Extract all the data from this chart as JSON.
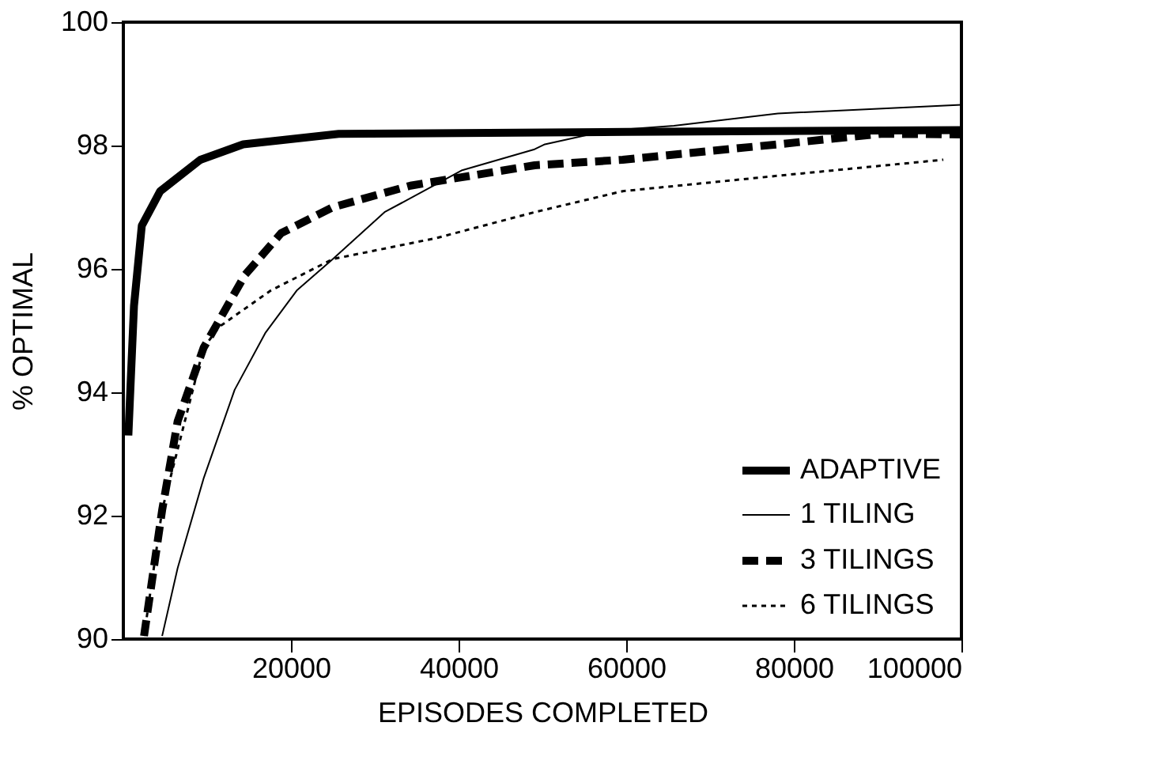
{
  "chart_data": {
    "type": "line",
    "xlabel": "EPISODES COMPLETED",
    "ylabel": "% OPTIMAL",
    "xlim": [
      0,
      100000
    ],
    "ylim": [
      90,
      100
    ],
    "xticks": [
      20000,
      40000,
      60000,
      80000,
      100000
    ],
    "yticks": [
      90,
      92,
      94,
      96,
      98,
      100
    ],
    "grid": false,
    "legend": "bottom right",
    "marker": "none",
    "series": [
      {
        "name": "ADAPTIVE",
        "color": "#000000",
        "line_style": "solid",
        "x": [
          600,
          1270,
          2200,
          4400,
          9200,
          14300,
          25700,
          60000,
          100000
        ],
        "values": [
          93.3,
          95.4,
          96.7,
          97.26,
          97.77,
          98.02,
          98.19,
          98.22,
          98.25
        ]
      },
      {
        "name": "1 TILING",
        "color": "#000000",
        "line_style": "solid",
        "x": [
          4630,
          6480,
          9570,
          13280,
          16980,
          20690,
          25000,
          31170,
          40430,
          49080,
          50300,
          57700,
          65700,
          78100,
          100000
        ],
        "values": [
          90.05,
          91.15,
          92.6,
          94.04,
          94.97,
          95.65,
          96.16,
          96.92,
          97.6,
          97.94,
          98.02,
          98.24,
          98.32,
          98.52,
          98.66
        ]
      },
      {
        "name": "3 TILINGS",
        "color": "#000000",
        "line_style": "dashed",
        "x": [
          2470,
          4630,
          6480,
          9570,
          14500,
          18830,
          25000,
          34260,
          49080,
          59580,
          78100,
          90400,
          100000
        ],
        "values": [
          90.05,
          92.09,
          93.53,
          94.72,
          95.9,
          96.58,
          97.0,
          97.35,
          97.68,
          97.77,
          98.02,
          98.19,
          98.18
        ]
      },
      {
        "name": "6 TILINGS",
        "color": "#000000",
        "line_style": "dotted",
        "x": [
          2470,
          4630,
          9570,
          11420,
          17590,
          25000,
          37350,
          49080,
          59580,
          78100,
          97840
        ],
        "values": [
          90.05,
          92.09,
          94.72,
          95.06,
          95.65,
          96.16,
          96.5,
          96.92,
          97.26,
          97.51,
          97.77
        ]
      }
    ]
  }
}
